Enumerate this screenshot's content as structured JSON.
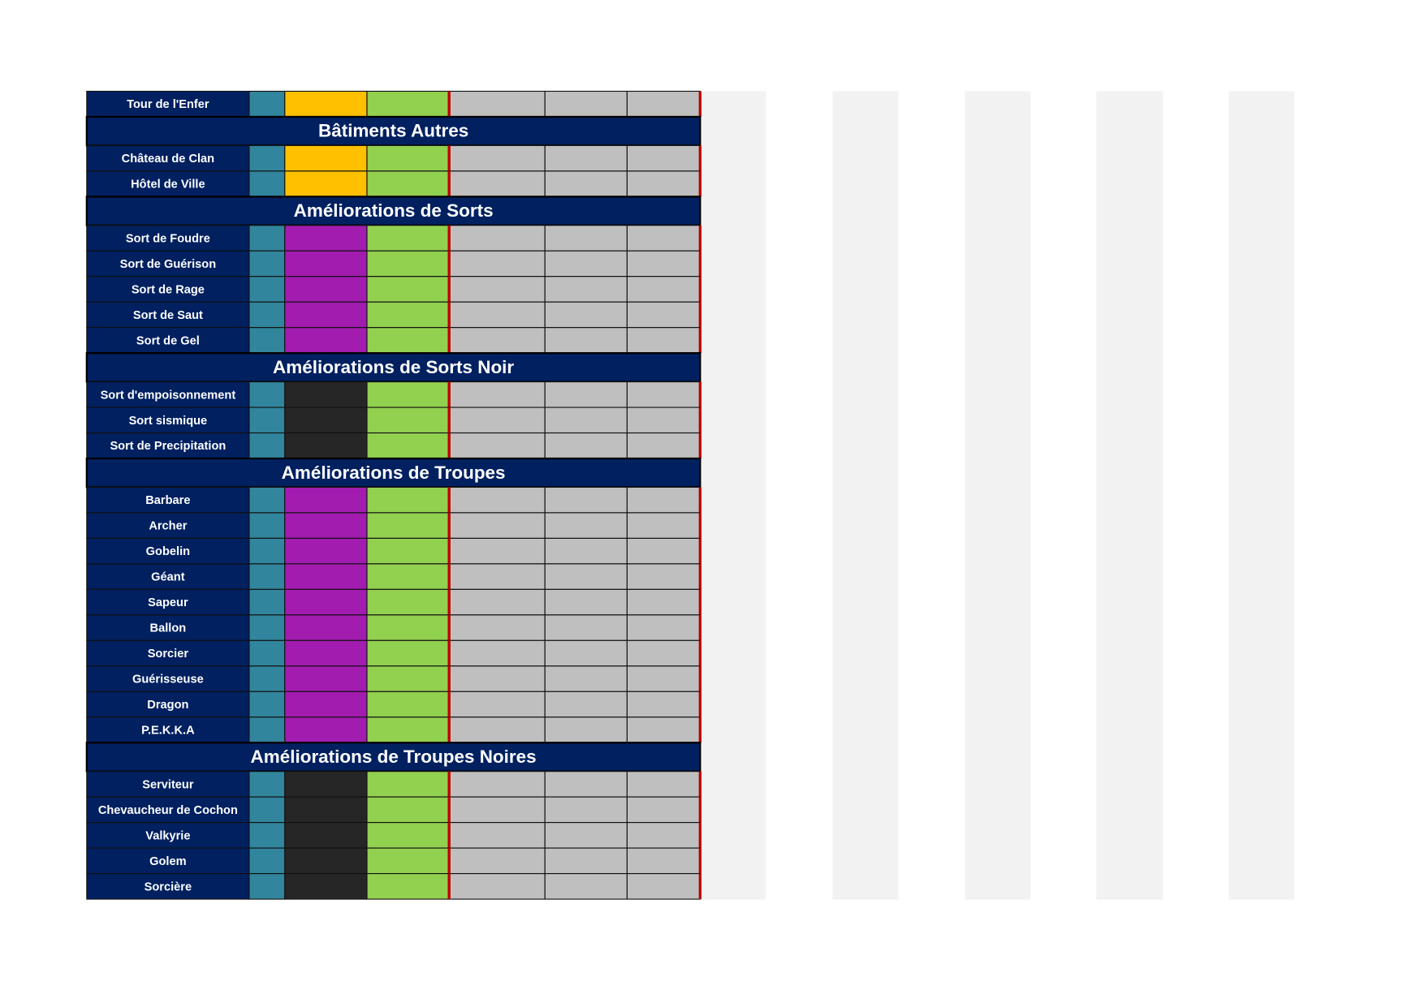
{
  "top": {
    "color": "#ffc000",
    "rows": [
      "Tour de l'Enfer"
    ]
  },
  "sections": [
    {
      "title": "Bâtiments Autres",
      "color": "#ffc000",
      "rows": [
        "Château de Clan",
        "Hôtel de Ville"
      ]
    },
    {
      "title": "Améliorations de Sorts",
      "color": "#a21caf",
      "rows": [
        "Sort de Foudre",
        "Sort de Guérison",
        "Sort de Rage",
        "Sort de Saut",
        "Sort de Gel"
      ]
    },
    {
      "title": "Améliorations de Sorts Noir",
      "color": "#262626",
      "rows": [
        "Sort d'empoisonnement",
        "Sort sismique",
        "Sort de Precipitation"
      ]
    },
    {
      "title": "Améliorations de Troupes",
      "color": "#a21caf",
      "rows": [
        "Barbare",
        "Archer",
        "Gobelin",
        "Géant",
        "Sapeur",
        "Ballon",
        "Sorcier",
        "Guérisseuse",
        "Dragon",
        "P.E.K.K.A"
      ]
    },
    {
      "title": "Améliorations de Troupes Noires",
      "color": "#262626",
      "rows": [
        "Serviteur",
        "Chevaucheur de Cochon",
        "Valkyrie",
        "Golem",
        "Sorcière"
      ]
    }
  ]
}
